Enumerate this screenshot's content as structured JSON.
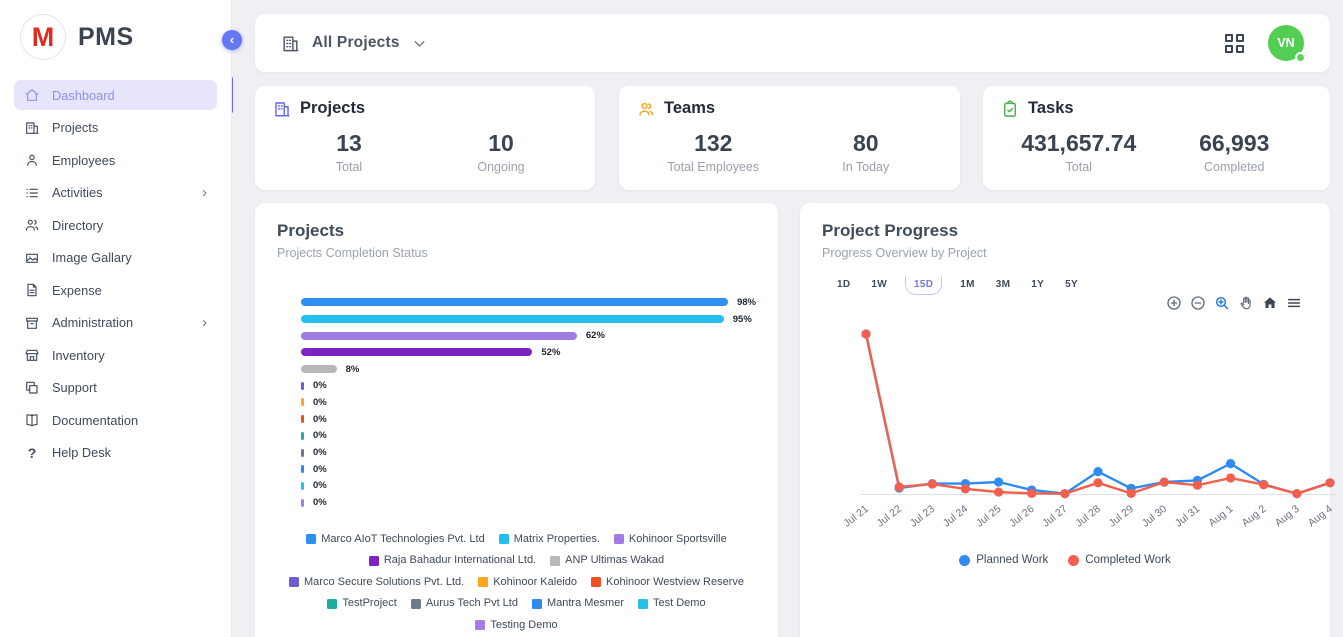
{
  "app": {
    "name": "PMS",
    "logo_letter": "M"
  },
  "sidebar": {
    "collapse_icon": "chevron-left",
    "items": [
      {
        "label": "Dashboard",
        "icon": "home",
        "active": true,
        "has_submenu": false
      },
      {
        "label": "Projects",
        "icon": "building",
        "active": false,
        "has_submenu": false
      },
      {
        "label": "Employees",
        "icon": "person",
        "active": false,
        "has_submenu": false
      },
      {
        "label": "Activities",
        "icon": "list",
        "active": false,
        "has_submenu": true
      },
      {
        "label": "Directory",
        "icon": "people",
        "active": false,
        "has_submenu": false
      },
      {
        "label": "Image Gallary",
        "icon": "image",
        "active": false,
        "has_submenu": false
      },
      {
        "label": "Expense",
        "icon": "receipt",
        "active": false,
        "has_submenu": false
      },
      {
        "label": "Administration",
        "icon": "archive",
        "active": false,
        "has_submenu": true
      },
      {
        "label": "Inventory",
        "icon": "store",
        "active": false,
        "has_submenu": false
      },
      {
        "label": "Support",
        "icon": "copy",
        "active": false,
        "has_submenu": false
      },
      {
        "label": "Documentation",
        "icon": "book",
        "active": false,
        "has_submenu": false
      },
      {
        "label": "Help Desk",
        "icon": "help",
        "active": false,
        "has_submenu": false
      }
    ]
  },
  "topbar": {
    "project_filter": "All Projects",
    "icons": [
      "building-icon",
      "chevron-down-icon",
      "grid-icon"
    ],
    "avatar_initials": "VN",
    "avatar_color": "#52cf53",
    "status": "online"
  },
  "stats": [
    {
      "title": "Projects",
      "icon": "building",
      "icon_color": "#6366f1",
      "metrics": [
        {
          "value": "13",
          "label": "Total"
        },
        {
          "value": "10",
          "label": "Ongoing"
        }
      ]
    },
    {
      "title": "Teams",
      "icon": "people",
      "icon_color": "#f5a623",
      "metrics": [
        {
          "value": "132",
          "label": "Total Employees"
        },
        {
          "value": "80",
          "label": "In Today"
        }
      ]
    },
    {
      "title": "Tasks",
      "icon": "clipboard-check",
      "icon_color": "#4caf50",
      "metrics": [
        {
          "value": "431,657.74",
          "label": "Total"
        },
        {
          "value": "66,993",
          "label": "Completed"
        }
      ]
    }
  ],
  "left_chart": {
    "title": "Projects",
    "subtitle": "Projects Completion Status"
  },
  "right_chart": {
    "title": "Project Progress",
    "subtitle": "Progress Overview by Project",
    "range_buttons": [
      "1D",
      "1W",
      "15D",
      "1M",
      "3M",
      "1Y",
      "5Y"
    ],
    "selected_range": "15D",
    "toolbar": [
      "zoom-in",
      "zoom-out",
      "zoom",
      "pan",
      "home",
      "menu"
    ],
    "toolbar_active": "zoom"
  },
  "chart_data": [
    {
      "type": "bar",
      "orientation": "horizontal",
      "title": "Projects Completion Status",
      "categories": [
        "Marco AIoT Technologies Pvt. Ltd",
        "Matrix Properties.",
        "Kohinoor Sportsville",
        "Raja Bahadur International Ltd.",
        "ANP Ultimas Wakad",
        "Marco Secure Solutions Pvt. Ltd.",
        "Kohinoor Kaleido",
        "Kohinoor Westview Reserve",
        "TestProject",
        "Aurus Tech Pvt Ltd",
        "Mantra Mesmer",
        "Test Demo",
        "Testing Demo"
      ],
      "values": [
        98,
        95,
        62,
        52,
        8,
        0,
        0,
        0,
        0,
        0,
        0,
        0,
        0
      ],
      "value_labels": [
        "98%",
        "95%",
        "62%",
        "52%",
        "8%",
        "0%",
        "0%",
        "0%",
        "0%",
        "0%",
        "0%",
        "0%",
        "0%"
      ],
      "colors": [
        "#2e8ff2",
        "#22c0f0",
        "#a07ce0",
        "#7d22c3",
        "#b8b8b8",
        "#6c5ecf",
        "#ffa61a",
        "#f04e1f",
        "#1fae9e",
        "#6b7c8c",
        "#2d8cf0",
        "#27c0ea",
        "#a77ce8"
      ],
      "xlim": [
        0,
        100
      ],
      "unit": "%",
      "legend_position": "bottom"
    },
    {
      "type": "line",
      "title": "Progress Overview by Project",
      "x": [
        "Jul 21",
        "Jul 22",
        "Jul 23",
        "Jul 24",
        "Jul 25",
        "Jul 26",
        "Jul 27",
        "Jul 28",
        "Jul 29",
        "Jul 30",
        "Jul 31",
        "Aug 1",
        "Aug 2",
        "Aug 3",
        "Aug 4"
      ],
      "series": [
        {
          "name": "Planned Work",
          "color": "#2f8bf2",
          "values": [
            100,
            3.7,
            6.5,
            6.5,
            7.5,
            2.5,
            0.2,
            14,
            3.5,
            7.5,
            8.5,
            19,
            6,
            0.2,
            7
          ]
        },
        {
          "name": "Completed Work",
          "color": "#f2604d",
          "values": [
            100,
            4.4,
            6.2,
            3.2,
            1.2,
            0.4,
            0.2,
            7,
            0.4,
            7.4,
            5.5,
            10,
            5.8,
            0.2,
            7
          ]
        }
      ],
      "ylim": [
        0,
        105
      ],
      "grid": false,
      "legend_position": "bottom",
      "marker": "circle"
    }
  ]
}
